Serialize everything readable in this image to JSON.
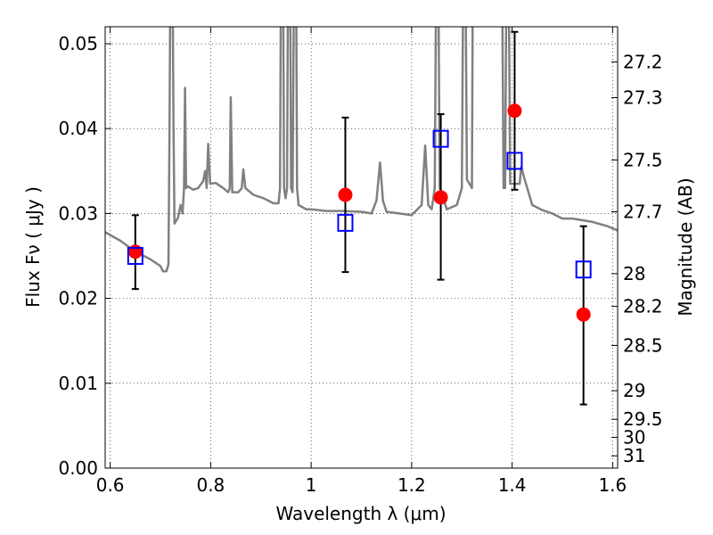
{
  "chart_data": {
    "type": "scatter",
    "title": "",
    "xlabel": "Wavelength  λ (μm)",
    "ylabel": "Flux  Fν  ( μJy )",
    "y2label": "Magnitude (AB)",
    "xlim": [
      0.59,
      1.61
    ],
    "ylim": [
      0.0,
      0.052
    ],
    "grid": true,
    "grid_style": "dotted",
    "x_ticks": [
      {
        "value": 0.6,
        "label": "0.6"
      },
      {
        "value": 0.8,
        "label": "0.8"
      },
      {
        "value": 1.0,
        "label": "1"
      },
      {
        "value": 1.2,
        "label": "1.2"
      },
      {
        "value": 1.4,
        "label": "1.4"
      },
      {
        "value": 1.6,
        "label": "1.6"
      }
    ],
    "y_ticks": [
      {
        "value": 0.0,
        "label": "0.00"
      },
      {
        "value": 0.01,
        "label": "0.01"
      },
      {
        "value": 0.02,
        "label": "0.02"
      },
      {
        "value": 0.03,
        "label": "0.03"
      },
      {
        "value": 0.04,
        "label": "0.04"
      },
      {
        "value": 0.05,
        "label": "0.05"
      }
    ],
    "y2_ticks": [
      {
        "mag": 27.2,
        "label": "27.2"
      },
      {
        "mag": 27.3,
        "label": "27.3"
      },
      {
        "mag": 27.5,
        "label": "27.5"
      },
      {
        "mag": 27.7,
        "label": "27.7"
      },
      {
        "mag": 28.0,
        "label": "28"
      },
      {
        "mag": 28.2,
        "label": "28.2"
      },
      {
        "mag": 28.5,
        "label": "28.5"
      },
      {
        "mag": 29.0,
        "label": "29"
      },
      {
        "mag": 29.5,
        "label": "29.5"
      },
      {
        "mag": 30.0,
        "label": "30"
      },
      {
        "mag": 31.0,
        "label": "31"
      }
    ],
    "observed": {
      "marker": "filled-circle",
      "color": "#ff0000",
      "points": [
        {
          "x": 0.65,
          "y": 0.0255,
          "ylo": 0.0211,
          "yhi": 0.0298
        },
        {
          "x": 1.068,
          "y": 0.0322,
          "ylo": 0.0231,
          "yhi": 0.0413
        },
        {
          "x": 1.258,
          "y": 0.0319,
          "ylo": 0.0222,
          "yhi": 0.0417
        },
        {
          "x": 1.405,
          "y": 0.0421,
          "ylo": 0.0328,
          "yhi": 0.0514
        },
        {
          "x": 1.542,
          "y": 0.0181,
          "ylo": 0.0075,
          "yhi": 0.0285
        }
      ]
    },
    "model_points": {
      "marker": "open-square",
      "color": "#0000ff",
      "points": [
        {
          "x": 0.65,
          "y": 0.025
        },
        {
          "x": 1.068,
          "y": 0.0289
        },
        {
          "x": 1.258,
          "y": 0.0388
        },
        {
          "x": 1.405,
          "y": 0.0362
        },
        {
          "x": 1.542,
          "y": 0.0234
        }
      ]
    },
    "model_spectrum": {
      "color": "#808080",
      "points": [
        [
          0.59,
          0.0278
        ],
        [
          0.62,
          0.0268
        ],
        [
          0.65,
          0.0255
        ],
        [
          0.68,
          0.0246
        ],
        [
          0.7,
          0.0238
        ],
        [
          0.705,
          0.0232
        ],
        [
          0.712,
          0.0232
        ],
        [
          0.716,
          0.024
        ],
        [
          0.718,
          0.04
        ],
        [
          0.72,
          0.06
        ],
        [
          0.724,
          0.06
        ],
        [
          0.726,
          0.04
        ],
        [
          0.728,
          0.0288
        ],
        [
          0.735,
          0.0295
        ],
        [
          0.74,
          0.031
        ],
        [
          0.744,
          0.03
        ],
        [
          0.747,
          0.033
        ],
        [
          0.749,
          0.0448
        ],
        [
          0.751,
          0.033
        ],
        [
          0.755,
          0.0332
        ],
        [
          0.765,
          0.0328
        ],
        [
          0.775,
          0.033
        ],
        [
          0.785,
          0.0338
        ],
        [
          0.789,
          0.035
        ],
        [
          0.792,
          0.033
        ],
        [
          0.795,
          0.0382
        ],
        [
          0.799,
          0.0335
        ],
        [
          0.81,
          0.0336
        ],
        [
          0.825,
          0.033
        ],
        [
          0.835,
          0.0325
        ],
        [
          0.838,
          0.033
        ],
        [
          0.84,
          0.0437
        ],
        [
          0.843,
          0.0325
        ],
        [
          0.855,
          0.0325
        ],
        [
          0.862,
          0.033
        ],
        [
          0.865,
          0.0352
        ],
        [
          0.869,
          0.033
        ],
        [
          0.885,
          0.0322
        ],
        [
          0.905,
          0.0318
        ],
        [
          0.925,
          0.0312
        ],
        [
          0.935,
          0.0312
        ],
        [
          0.938,
          0.033
        ],
        [
          0.94,
          0.06
        ],
        [
          0.944,
          0.06
        ],
        [
          0.946,
          0.033
        ],
        [
          0.949,
          0.0318
        ],
        [
          0.952,
          0.033
        ],
        [
          0.954,
          0.06
        ],
        [
          0.958,
          0.06
        ],
        [
          0.96,
          0.033
        ],
        [
          0.963,
          0.0325
        ],
        [
          0.966,
          0.06
        ],
        [
          0.97,
          0.06
        ],
        [
          0.972,
          0.033
        ],
        [
          0.975,
          0.031
        ],
        [
          0.99,
          0.0305
        ],
        [
          1.0,
          0.0305
        ],
        [
          1.03,
          0.0303
        ],
        [
          1.06,
          0.0303
        ],
        [
          1.1,
          0.0302
        ],
        [
          1.12,
          0.03
        ],
        [
          1.13,
          0.0315
        ],
        [
          1.137,
          0.036
        ],
        [
          1.143,
          0.0315
        ],
        [
          1.15,
          0.0302
        ],
        [
          1.2,
          0.0298
        ],
        [
          1.22,
          0.031
        ],
        [
          1.227,
          0.038
        ],
        [
          1.233,
          0.031
        ],
        [
          1.24,
          0.0305
        ],
        [
          1.246,
          0.033
        ],
        [
          1.249,
          0.06
        ],
        [
          1.253,
          0.06
        ],
        [
          1.256,
          0.033
        ],
        [
          1.27,
          0.0305
        ],
        [
          1.29,
          0.031
        ],
        [
          1.3,
          0.033
        ],
        [
          1.303,
          0.06
        ],
        [
          1.307,
          0.06
        ],
        [
          1.31,
          0.034
        ],
        [
          1.32,
          0.033
        ],
        [
          1.322,
          0.06
        ],
        [
          1.38,
          0.06
        ],
        [
          1.383,
          0.033
        ],
        [
          1.386,
          0.033
        ],
        [
          1.389,
          0.06
        ],
        [
          1.393,
          0.06
        ],
        [
          1.396,
          0.0335
        ],
        [
          1.41,
          0.0335
        ],
        [
          1.415,
          0.0335
        ],
        [
          1.418,
          0.0355
        ],
        [
          1.425,
          0.034
        ],
        [
          1.44,
          0.031
        ],
        [
          1.46,
          0.0304
        ],
        [
          1.48,
          0.03
        ],
        [
          1.5,
          0.0294
        ],
        [
          1.52,
          0.0294
        ],
        [
          1.56,
          0.029
        ],
        [
          1.59,
          0.0285
        ],
        [
          1.61,
          0.028
        ]
      ]
    }
  }
}
